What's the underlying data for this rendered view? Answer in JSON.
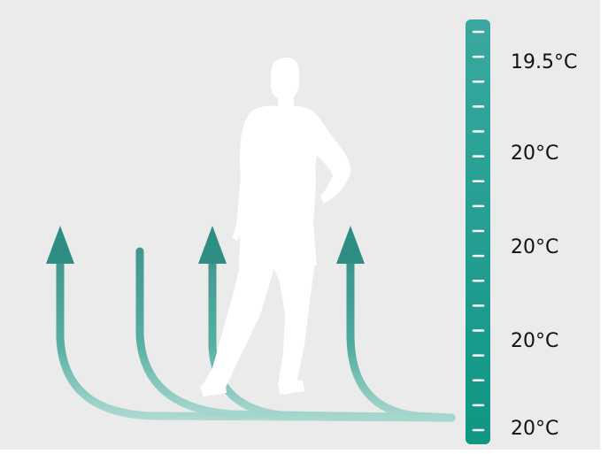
{
  "thermometer": {
    "labels": [
      "19.5°C",
      "20°C",
      "20°C",
      "20°C",
      "20°C"
    ],
    "tick_count": 17,
    "colors": {
      "top": "#3aa8a0",
      "bottom": "#0f9683",
      "tick": "#ffffff"
    }
  },
  "airflow": {
    "arrow_count": 4,
    "colors": {
      "strong": "#2f9186",
      "faint": "#a9d8d0"
    }
  },
  "person": {
    "icon": "person-silhouette-icon",
    "color": "#ffffff"
  },
  "background": {
    "color": "#ebebeb"
  }
}
